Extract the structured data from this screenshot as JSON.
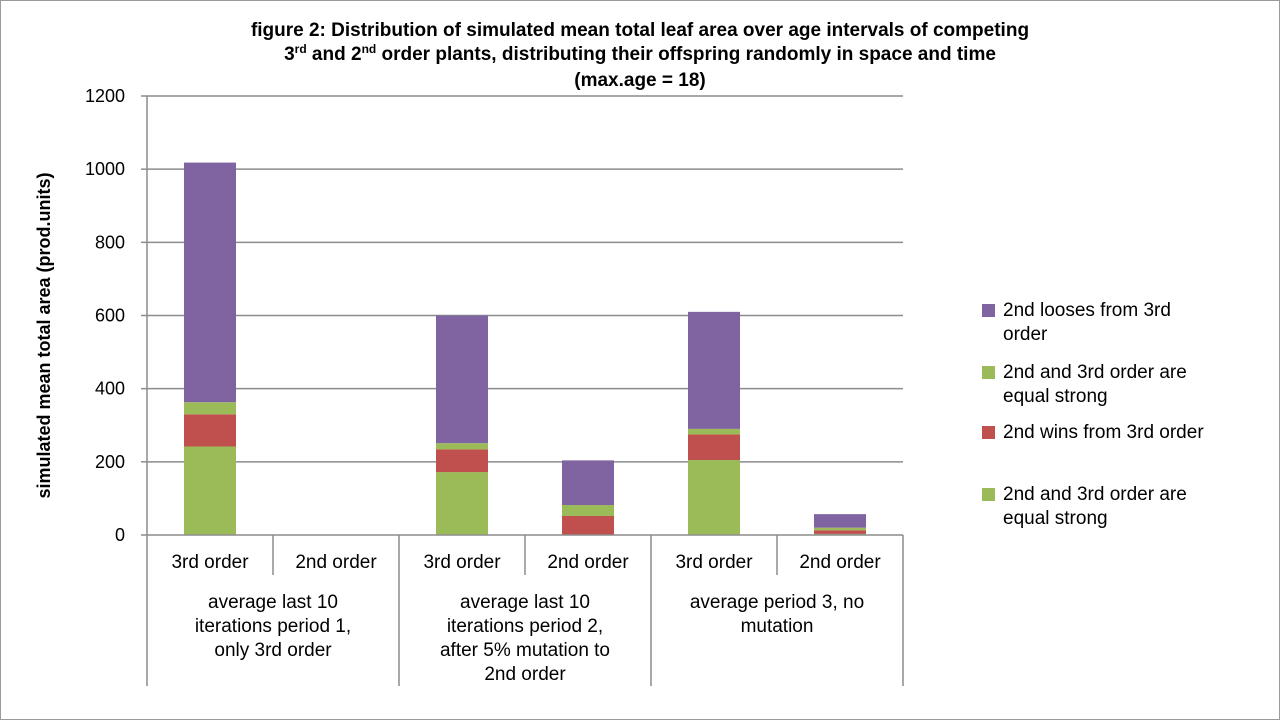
{
  "chart_data": {
    "type": "bar",
    "stacked": true,
    "title_lines": [
      "figure 2: Distribution  of simulated mean total  leaf area over age intervals of competing",
      [
        "3",
        "rd",
        " and 2",
        "nd",
        " order plants,  distributing  their offspring randomly in space and time"
      ],
      "(max.age = 18)"
    ],
    "ylabel": "simulated mean total area (prod.units)",
    "ylim": [
      0,
      1200
    ],
    "yticks": [
      0,
      200,
      400,
      600,
      800,
      1000,
      1200
    ],
    "grid": true,
    "legend_position": "right",
    "categories": [
      "3rd order",
      "2nd order",
      "3rd order",
      "2nd order",
      "3rd order",
      "2nd order"
    ],
    "groups": [
      {
        "label_lines": [
          "average last 10",
          "iterations period 1,",
          "only 3rd order"
        ]
      },
      {
        "label_lines": [
          "average last 10",
          "iterations period 2,",
          "after 5% mutation to",
          "2nd order"
        ]
      },
      {
        "label_lines": [
          "average period 3, no",
          "mutation"
        ]
      }
    ],
    "series": [
      {
        "name_lines": [
          "2nd and 3rd order are",
          "equal strong"
        ],
        "color": "#9bbb59",
        "values": [
          242,
          0,
          172,
          0,
          205,
          3
        ]
      },
      {
        "name_lines": [
          "2nd wins from 3rd order"
        ],
        "color": "#c0504d",
        "values": [
          88,
          0,
          62,
          52,
          70,
          10
        ]
      },
      {
        "name_lines": [
          "2nd and 3rd order are",
          "equal strong"
        ],
        "color": "#9bbb59",
        "values": [
          33,
          0,
          17,
          30,
          15,
          7
        ]
      },
      {
        "name_lines": [
          "2nd looses from 3rd",
          "order"
        ],
        "color": "#8064a2",
        "values": [
          655,
          0,
          349,
          122,
          320,
          37
        ]
      }
    ]
  }
}
